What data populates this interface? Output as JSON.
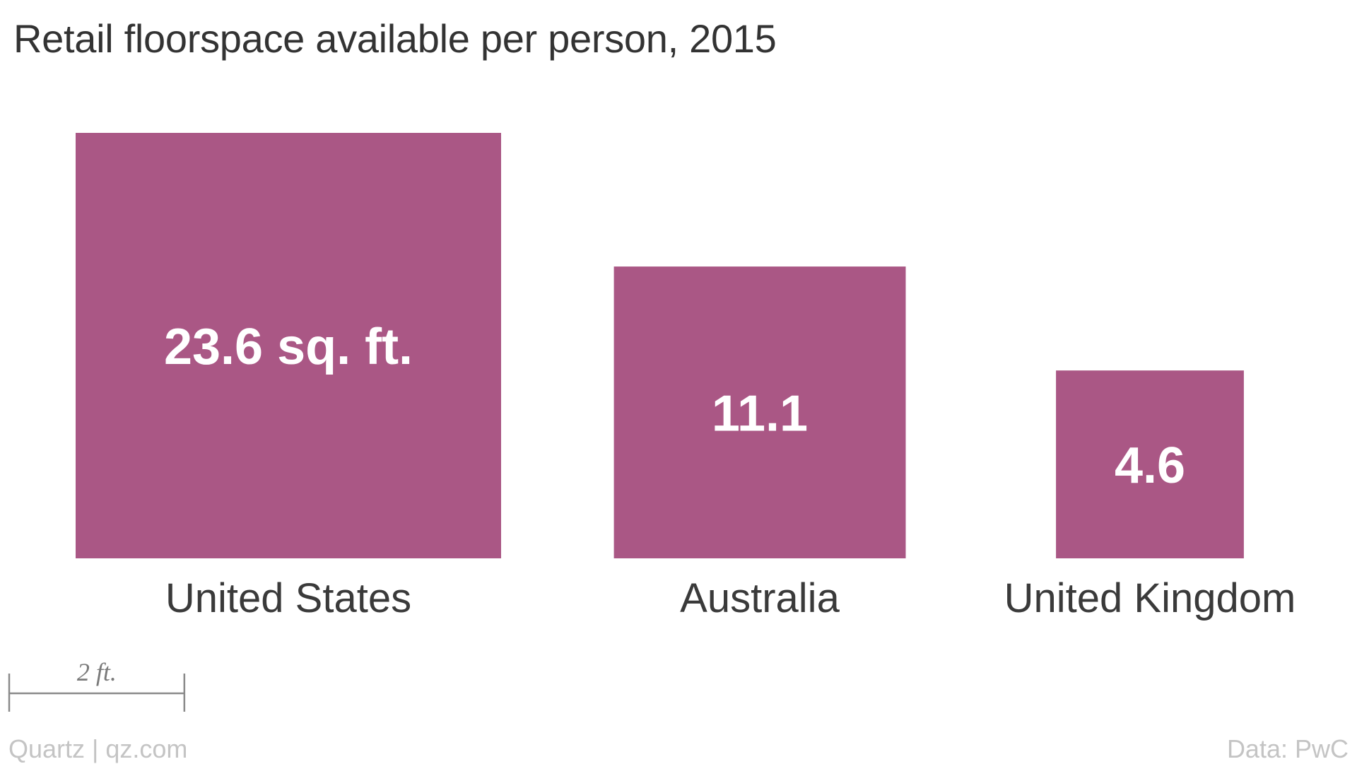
{
  "chart_data": {
    "type": "bar",
    "title": "Retail floorspace available per person, 2015",
    "unit": "sq. ft.",
    "categories": [
      "United States",
      "Australia",
      "United Kingdom"
    ],
    "values": [
      23.6,
      11.1,
      4.6
    ],
    "value_labels": [
      "23.6 sq. ft.",
      "11.1",
      "4.6"
    ],
    "scale_label": "2 ft.",
    "scale_feet": 2,
    "color": "#aa5785"
  },
  "footer": {
    "source": "Quartz | qz.com",
    "data_credit": "Data: PwC"
  }
}
